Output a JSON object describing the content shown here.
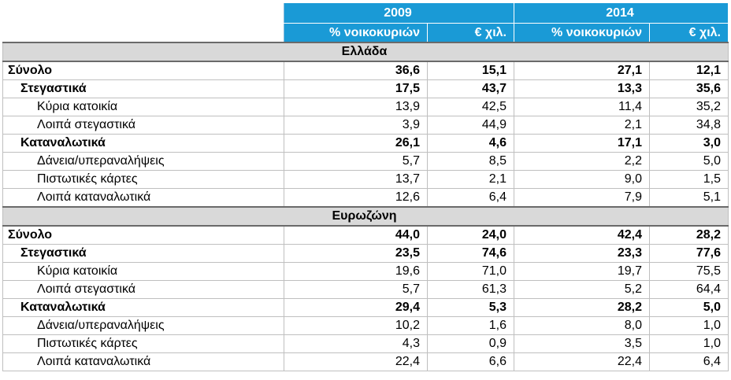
{
  "header": {
    "years": [
      "2009",
      "2014"
    ],
    "columns": [
      "% νοικοκυριών",
      "€ χιλ.",
      "% νοικοκυριών",
      "€ χιλ."
    ]
  },
  "sections": [
    {
      "region": "Ελλάδα",
      "rows": [
        {
          "label": "Σύνολο",
          "level": "total",
          "values": [
            "36,6",
            "15,1",
            "27,1",
            "12,1"
          ]
        },
        {
          "label": "Στεγαστικά",
          "level": "group",
          "values": [
            "17,5",
            "43,7",
            "13,3",
            "35,6"
          ]
        },
        {
          "label": "Κύρια κατοικία",
          "level": "item",
          "values": [
            "13,9",
            "42,5",
            "11,4",
            "35,2"
          ]
        },
        {
          "label": "Λοιπά στεγαστικά",
          "level": "item",
          "values": [
            "3,9",
            "44,9",
            "2,1",
            "34,8"
          ]
        },
        {
          "label": "Καταναλωτικά",
          "level": "group",
          "values": [
            "26,1",
            "4,6",
            "17,1",
            "3,0"
          ]
        },
        {
          "label": "Δάνεια/υπεραναλήψεις",
          "level": "item",
          "values": [
            "5,7",
            "8,5",
            "2,2",
            "5,0"
          ]
        },
        {
          "label": "Πιστωτικές κάρτες",
          "level": "item",
          "values": [
            "13,7",
            "2,1",
            "9,0",
            "1,5"
          ]
        },
        {
          "label": "Λοιπά καταναλωτικά",
          "level": "item",
          "values": [
            "12,6",
            "6,4",
            "7,9",
            "5,1"
          ]
        }
      ]
    },
    {
      "region": "Ευρωζώνη",
      "rows": [
        {
          "label": "Σύνολο",
          "level": "total",
          "values": [
            "44,0",
            "24,0",
            "42,4",
            "28,2"
          ]
        },
        {
          "label": "Στεγαστικά",
          "level": "group",
          "values": [
            "23,5",
            "74,6",
            "23,3",
            "77,6"
          ]
        },
        {
          "label": "Κύρια κατοικία",
          "level": "item",
          "values": [
            "19,6",
            "71,0",
            "19,7",
            "75,5"
          ]
        },
        {
          "label": "Λοιπά στεγαστικά",
          "level": "item",
          "values": [
            "5,7",
            "61,3",
            "5,2",
            "64,4"
          ]
        },
        {
          "label": "Καταναλωτικά",
          "level": "group",
          "values": [
            "29,4",
            "5,3",
            "28,2",
            "5,0"
          ]
        },
        {
          "label": "Δάνεια/υπεραναλήψεις",
          "level": "item",
          "values": [
            "10,2",
            "1,6",
            "8,0",
            "1,0"
          ]
        },
        {
          "label": "Πιστωτικές κάρτες",
          "level": "item",
          "values": [
            "4,3",
            "0,9",
            "3,5",
            "1,0"
          ]
        },
        {
          "label": "Λοιπά καταναλωτικά",
          "level": "item",
          "values": [
            "22,4",
            "6,6",
            "22,4",
            "6,4"
          ]
        }
      ]
    }
  ],
  "colors": {
    "header_bg": "#1a9ad6",
    "region_bg": "#d9d9d9"
  }
}
